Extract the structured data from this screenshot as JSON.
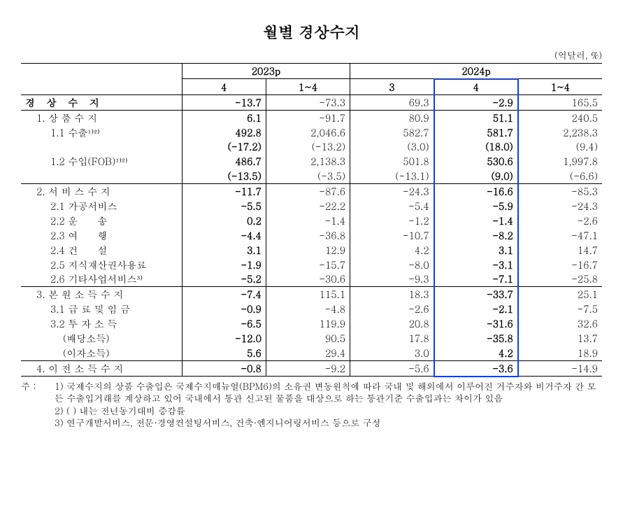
{
  "title": "월별 경상수지",
  "unit": "(억달러, %)",
  "headers": {
    "y2023": "2023p",
    "y2024": "2024p",
    "c1": "4",
    "c2": "1~4",
    "c3": "3",
    "c4": "4",
    "c5": "1~4"
  },
  "rows": [
    {
      "label": "경 상 수 지",
      "cls": "bold spaced",
      "v": [
        "-13.7",
        "-73.3",
        "69.3",
        "-2.9",
        "165.5"
      ],
      "boldcols": [
        0,
        3
      ],
      "divider": "above"
    },
    {
      "label": "1. 상 품 수 지",
      "cls": "indent1",
      "v": [
        "6.1",
        "-91.7",
        "80.9",
        "51.1",
        "240.5"
      ],
      "boldcols": [
        0,
        3
      ],
      "divider": "above"
    },
    {
      "label": "1.1 수출¹⁾²⁾",
      "cls": "indent2",
      "v": [
        "492.8",
        "2,046.6",
        "582.7",
        "581.7",
        "2,238.3"
      ],
      "boldcols": [
        0,
        3
      ]
    },
    {
      "label": "",
      "cls": "",
      "v": [
        "(-17.2)",
        "(-13.2)",
        "(3.0)",
        "(18.0)",
        "(9.4)"
      ],
      "boldcols": [
        0,
        3
      ]
    },
    {
      "label": "1.2 수입(FOB)¹⁾²⁾",
      "cls": "indent2",
      "v": [
        "486.7",
        "2,138.3",
        "501.8",
        "530.6",
        "1,997.8"
      ],
      "boldcols": [
        0,
        3
      ]
    },
    {
      "label": "",
      "cls": "",
      "v": [
        "(-13.5)",
        "(-3.5)",
        "(-13.1)",
        "(9.0)",
        "(-6.6)"
      ],
      "boldcols": [
        0,
        3
      ]
    },
    {
      "label": "2. 서 비 스 수 지",
      "cls": "indent1",
      "v": [
        "-11.7",
        "-87.6",
        "-24.3",
        "-16.6",
        "-85.3"
      ],
      "boldcols": [
        0,
        3
      ],
      "divider": "above"
    },
    {
      "label": "2.1 가공서비스",
      "cls": "indent2",
      "v": [
        "-5.5",
        "-22.2",
        "-5.4",
        "-5.9",
        "-24.3"
      ],
      "boldcols": [
        0,
        3
      ]
    },
    {
      "label": "2.2 운      송",
      "cls": "indent2",
      "v": [
        "0.2",
        "-1.4",
        "-1.2",
        "-1.4",
        "-2.6"
      ],
      "boldcols": [
        0,
        3
      ]
    },
    {
      "label": "2.3 여      행",
      "cls": "indent2",
      "v": [
        "-4.4",
        "-36.8",
        "-10.7",
        "-8.2",
        "-47.1"
      ],
      "boldcols": [
        0,
        3
      ]
    },
    {
      "label": "2.4 건      설",
      "cls": "indent2",
      "v": [
        "3.1",
        "12.9",
        "4.2",
        "3.1",
        "14.7"
      ],
      "boldcols": [
        0,
        3
      ]
    },
    {
      "label": "2.5 지식재산권사용료",
      "cls": "indent2",
      "v": [
        "-1.9",
        "-15.7",
        "-8.0",
        "-3.1",
        "-16.7"
      ],
      "boldcols": [
        0,
        3
      ]
    },
    {
      "label": "2.6 기타사업서비스³⁾",
      "cls": "indent2",
      "v": [
        "-5.2",
        "-30.6",
        "-9.3",
        "-7.1",
        "-25.8"
      ],
      "boldcols": [
        0,
        3
      ]
    },
    {
      "label": "3. 본 원 소 득 수 지",
      "cls": "indent1",
      "v": [
        "-7.4",
        "115.1",
        "18.3",
        "-33.7",
        "25.1"
      ],
      "boldcols": [
        0,
        3
      ],
      "divider": "above"
    },
    {
      "label": "3.1 급 료 및 임 금",
      "cls": "indent2",
      "v": [
        "-0.9",
        "-4.8",
        "-2.6",
        "-2.1",
        "-7.5"
      ],
      "boldcols": [
        0,
        3
      ]
    },
    {
      "label": "3.2 투 자 소 득",
      "cls": "indent2",
      "v": [
        "-6.5",
        "119.9",
        "20.8",
        "-31.6",
        "32.6"
      ],
      "boldcols": [
        0,
        3
      ]
    },
    {
      "label": "(배당소득)",
      "cls": "indent2b",
      "v": [
        "-12.0",
        "90.5",
        "17.8",
        "-35.8",
        "13.7"
      ],
      "boldcols": [
        0,
        3
      ]
    },
    {
      "label": "(이자소득)",
      "cls": "indent2b",
      "v": [
        "5.6",
        "29.4",
        "3.0",
        "4.2",
        "18.9"
      ],
      "boldcols": [
        0,
        3
      ]
    },
    {
      "label": "4. 이 전 소 득 수 지",
      "cls": "indent1",
      "v": [
        "-0.8",
        "-9.2",
        "-5.6",
        "-3.6",
        "-14.9"
      ],
      "boldcols": [
        0,
        3
      ],
      "divider": "above",
      "last": true
    }
  ],
  "notes": {
    "prefix": "주 : ",
    "items": [
      {
        "n": "1)",
        "t": "국제수지의 상품 수출입은 국제수지매뉴얼(BPM6)의 소유권 변동원칙에 따라 국내 및 해외에서 이루어진 거주자와 비거주자 간 모든 수출입거래를 계상하고 있어 국내에서 통관 신고된 물품을 대상으로 하는 통관기준 수출입과는 차이가 있음"
      },
      {
        "n": "2)",
        "t": "(  ) 내는 전년동기대비 증감률"
      },
      {
        "n": "3)",
        "t": "연구개발서비스, 전문·경영컨설팅서비스, 건축·엔지니어링서비스 등으로 구성"
      }
    ]
  },
  "styling": {
    "highlight_color": "#1a3fd4",
    "border_color": "#000000",
    "background": "#ffffff",
    "font_family": "Batang, serif",
    "title_fontsize": 22,
    "body_fontsize": 14
  }
}
